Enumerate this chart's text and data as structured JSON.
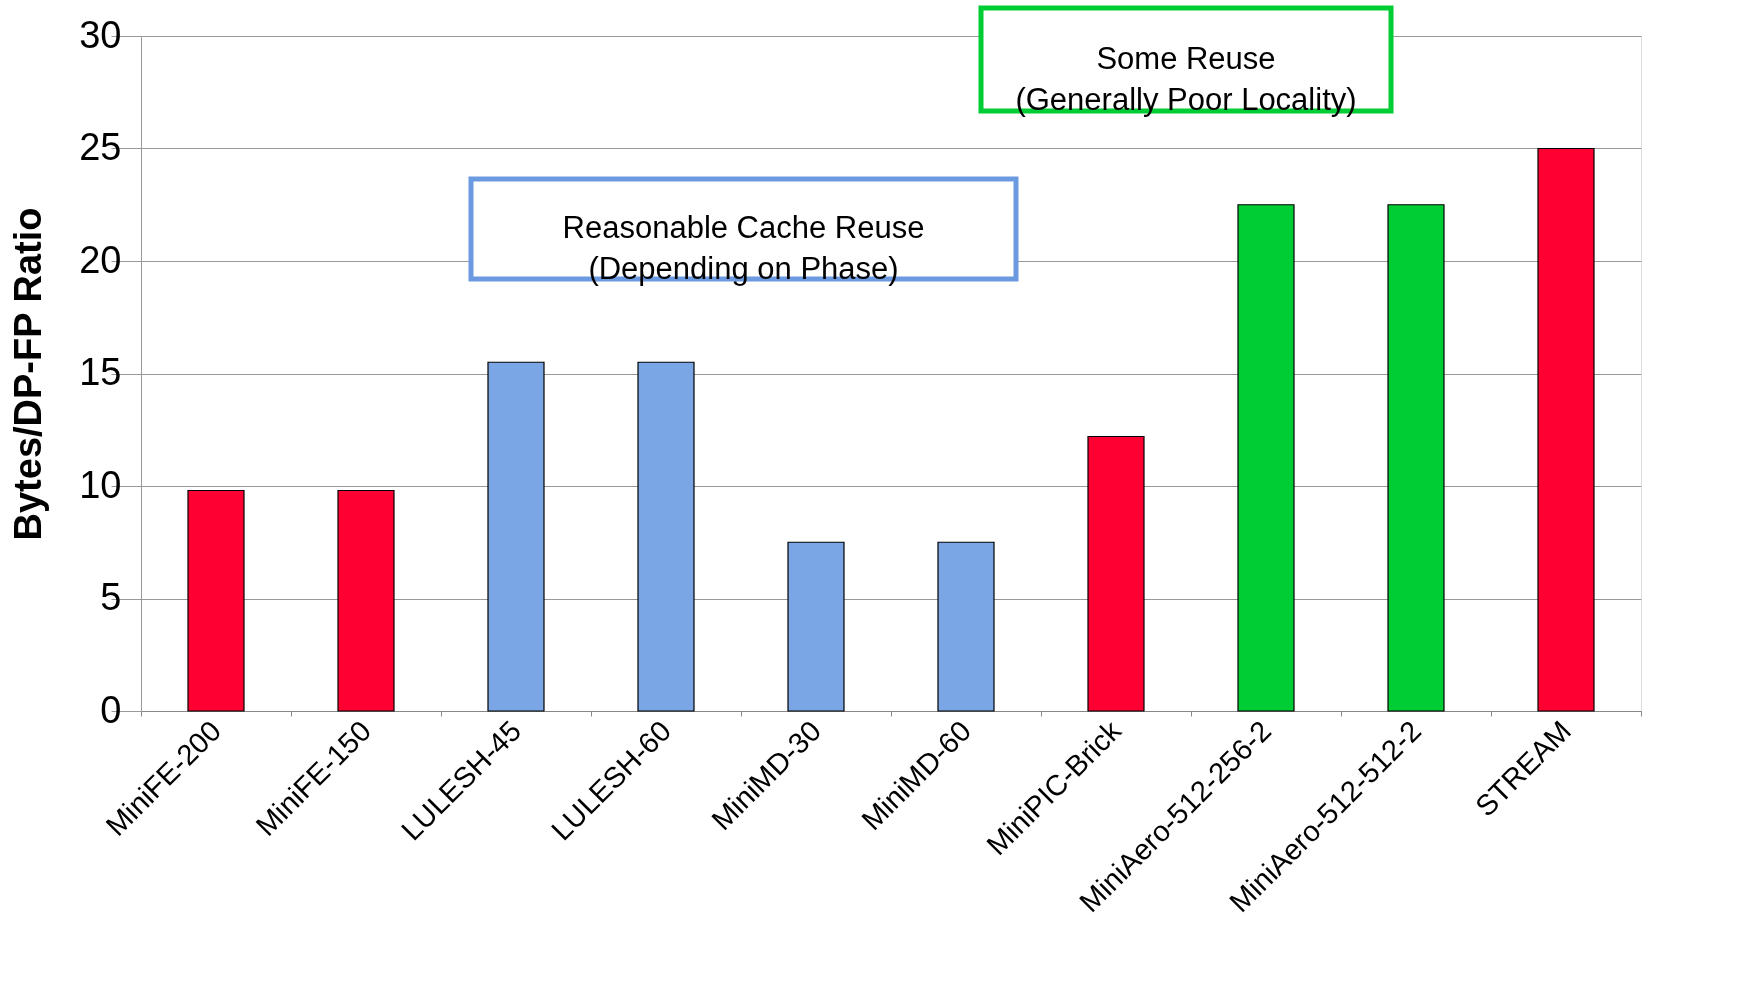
{
  "chart_data": {
    "type": "bar",
    "ylabel": "Bytes/DP-FP Ratio",
    "categories": [
      "MiniFE-200",
      "MiniFE-150",
      "LULESH-45",
      "LULESH-60",
      "MiniMD-30",
      "MiniMD-60",
      "MiniPIC-Brick",
      "MiniAero-512-256-2",
      "MiniAero-512-512-2",
      "STREAM"
    ],
    "values": [
      9.8,
      9.8,
      15.5,
      15.5,
      7.5,
      7.5,
      12.2,
      22.5,
      22.5,
      25
    ],
    "colors": [
      "#ff0033",
      "#ff0033",
      "#7aa6e6",
      "#7aa6e6",
      "#7aa6e6",
      "#7aa6e6",
      "#ff0033",
      "#00cc33",
      "#00cc33",
      "#ff0033"
    ],
    "ylim": [
      0,
      30
    ],
    "yticks": [
      0,
      5,
      10,
      15,
      20,
      25,
      30
    ],
    "grid": "y",
    "annotations": [
      "Reasonable Cache Reuse\n(Depending on Phase)",
      "Some Reuse\n(Generally Poor Locality)"
    ]
  }
}
